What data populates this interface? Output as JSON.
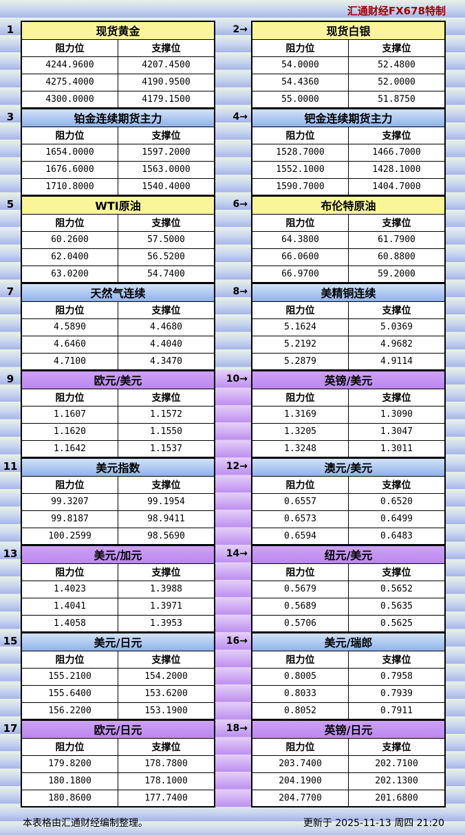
{
  "page": {
    "title": "汇通财经FX678特制",
    "footer_left": "本表格由汇通财经编制整理。",
    "footer_right": "更新于 2025-11-13 周四 21:20"
  },
  "labels": {
    "resistance": "阻力位",
    "support": "支撑位"
  },
  "colors": {
    "header_yellow": "#faf59b",
    "header_blue": "#8fb2ea",
    "header_purple": "#bb87ef",
    "mid_strip_purple": "#bd8ff0",
    "band_light": "#e8f2e6",
    "band_dark": "#a7b4e9",
    "title_red": "#a00000",
    "border": "#000000",
    "cell_bg": "#ffffff"
  },
  "tables": [
    {
      "tag": "1",
      "name": "现货黄金",
      "theme": "yellow",
      "rows": [
        [
          "4244.9600",
          "4207.4500"
        ],
        [
          "4275.4000",
          "4190.9500"
        ],
        [
          "4300.0000",
          "4179.1500"
        ]
      ]
    },
    {
      "tag": "2→",
      "name": "现货白银",
      "theme": "yellow",
      "rows": [
        [
          "54.0000",
          "52.4800"
        ],
        [
          "54.4360",
          "52.0000"
        ],
        [
          "55.0000",
          "51.8750"
        ]
      ]
    },
    {
      "tag": "3",
      "name": "铂金连续期货主力",
      "theme": "blue",
      "rows": [
        [
          "1654.0000",
          "1597.2000"
        ],
        [
          "1676.6000",
          "1563.0000"
        ],
        [
          "1710.8000",
          "1540.4000"
        ]
      ]
    },
    {
      "tag": "4→",
      "name": "钯金连续期货主力",
      "theme": "blue",
      "rows": [
        [
          "1528.7000",
          "1466.7000"
        ],
        [
          "1552.1000",
          "1428.1000"
        ],
        [
          "1590.7000",
          "1404.7000"
        ]
      ]
    },
    {
      "tag": "5",
      "name": "WTI原油",
      "theme": "yellow",
      "rows": [
        [
          "60.2600",
          "57.5000"
        ],
        [
          "62.0400",
          "56.5200"
        ],
        [
          "63.0200",
          "54.7400"
        ]
      ]
    },
    {
      "tag": "6→",
      "name": "布伦特原油",
      "theme": "yellow",
      "rows": [
        [
          "64.3800",
          "61.7900"
        ],
        [
          "66.0600",
          "60.8800"
        ],
        [
          "66.9700",
          "59.2000"
        ]
      ]
    },
    {
      "tag": "7",
      "name": "天然气连续",
      "theme": "blue",
      "rows": [
        [
          "4.5890",
          "4.4680"
        ],
        [
          "4.6460",
          "4.4040"
        ],
        [
          "4.7100",
          "4.3470"
        ]
      ]
    },
    {
      "tag": "8→",
      "name": "美精铜连续",
      "theme": "blue",
      "rows": [
        [
          "5.1624",
          "5.0369"
        ],
        [
          "5.2192",
          "4.9682"
        ],
        [
          "5.2879",
          "4.9114"
        ]
      ]
    },
    {
      "tag": "9",
      "name": "欧元/美元",
      "theme": "purple",
      "rows": [
        [
          "1.1607",
          "1.1572"
        ],
        [
          "1.1620",
          "1.1550"
        ],
        [
          "1.1642",
          "1.1537"
        ]
      ]
    },
    {
      "tag": "10→",
      "name": "英镑/美元",
      "theme": "purple",
      "rows": [
        [
          "1.3169",
          "1.3090"
        ],
        [
          "1.3205",
          "1.3047"
        ],
        [
          "1.3248",
          "1.3011"
        ]
      ]
    },
    {
      "tag": "11",
      "name": "美元指数",
      "theme": "blue",
      "rows": [
        [
          "99.3207",
          "99.1954"
        ],
        [
          "99.8187",
          "98.9411"
        ],
        [
          "100.2599",
          "98.5690"
        ]
      ]
    },
    {
      "tag": "12→",
      "name": "澳元/美元",
      "theme": "blue",
      "rows": [
        [
          "0.6557",
          "0.6520"
        ],
        [
          "0.6573",
          "0.6499"
        ],
        [
          "0.6594",
          "0.6483"
        ]
      ]
    },
    {
      "tag": "13",
      "name": "美元/加元",
      "theme": "purple",
      "rows": [
        [
          "1.4023",
          "1.3988"
        ],
        [
          "1.4041",
          "1.3971"
        ],
        [
          "1.4058",
          "1.3953"
        ]
      ]
    },
    {
      "tag": "14→",
      "name": "纽元/美元",
      "theme": "purple",
      "rows": [
        [
          "0.5679",
          "0.5652"
        ],
        [
          "0.5689",
          "0.5635"
        ],
        [
          "0.5706",
          "0.5625"
        ]
      ]
    },
    {
      "tag": "15",
      "name": "美元/日元",
      "theme": "blue",
      "rows": [
        [
          "155.2100",
          "154.2000"
        ],
        [
          "155.6400",
          "153.6200"
        ],
        [
          "156.2200",
          "153.1900"
        ]
      ]
    },
    {
      "tag": "16→",
      "name": "美元/瑞郎",
      "theme": "blue",
      "rows": [
        [
          "0.8005",
          "0.7958"
        ],
        [
          "0.8033",
          "0.7939"
        ],
        [
          "0.8052",
          "0.7911"
        ]
      ]
    },
    {
      "tag": "17",
      "name": "欧元/日元",
      "theme": "purple",
      "rows": [
        [
          "179.8200",
          "178.7800"
        ],
        [
          "180.1800",
          "178.1000"
        ],
        [
          "180.8600",
          "177.7400"
        ]
      ]
    },
    {
      "tag": "18→",
      "name": "英镑/日元",
      "theme": "purple",
      "rows": [
        [
          "203.7400",
          "202.7100"
        ],
        [
          "204.1900",
          "202.1300"
        ],
        [
          "204.7700",
          "201.6800"
        ]
      ]
    }
  ]
}
